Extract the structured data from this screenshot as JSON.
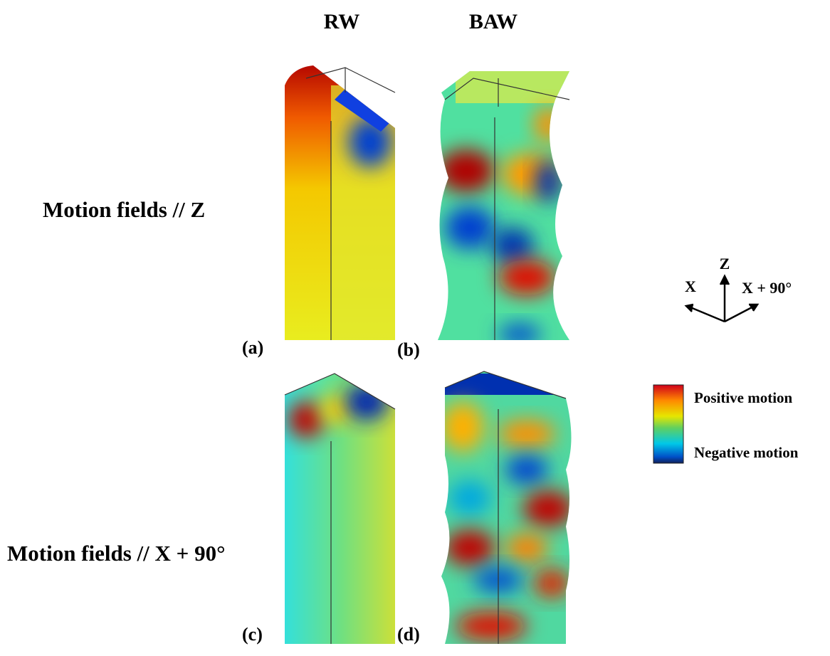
{
  "header": {
    "columns": [
      "RW",
      "BAW"
    ]
  },
  "rows": [
    "Motion fields // Z",
    "Motion fields // X + 90°"
  ],
  "panels": [
    "(a)",
    "(b)",
    "(c)",
    "(d)"
  ],
  "axes": {
    "z": "Z",
    "x": "X",
    "x90": "X + 90°"
  },
  "legend": {
    "positive": "Positive motion",
    "negative": "Negative motion"
  }
}
